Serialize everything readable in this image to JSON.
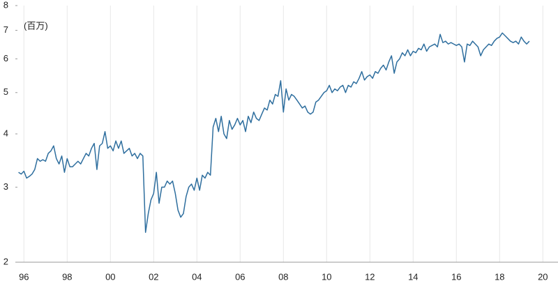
{
  "chart_data": {
    "type": "line",
    "y_label": "(百万)",
    "log_scale": true,
    "grid": true,
    "color": "#2e6e9e",
    "xlim": [
      1995.7,
      2020.7
    ],
    "xticks": [
      {
        "value": 1996,
        "label": "96"
      },
      {
        "value": 1998,
        "label": "98"
      },
      {
        "value": 2000,
        "label": "00"
      },
      {
        "value": 2002,
        "label": "02"
      },
      {
        "value": 2004,
        "label": "04"
      },
      {
        "value": 2006,
        "label": "06"
      },
      {
        "value": 2008,
        "label": "08"
      },
      {
        "value": 2010,
        "label": "10"
      },
      {
        "value": 2012,
        "label": "12"
      },
      {
        "value": 2014,
        "label": "14"
      },
      {
        "value": 2016,
        "label": "16"
      },
      {
        "value": 2018,
        "label": "18"
      },
      {
        "value": 2020,
        "label": "20"
      }
    ],
    "ylim": [
      2,
      8
    ],
    "yticks": [
      2,
      3,
      4,
      5,
      6,
      7,
      8
    ],
    "x": [
      1995.75,
      1995.875,
      1996,
      1996.125,
      1996.25,
      1996.375,
      1996.5,
      1996.625,
      1996.75,
      1996.875,
      1997,
      1997.125,
      1997.25,
      1997.375,
      1997.5,
      1997.625,
      1997.75,
      1997.875,
      1998,
      1998.125,
      1998.25,
      1998.375,
      1998.5,
      1998.625,
      1998.75,
      1998.875,
      1999,
      1999.125,
      1999.25,
      1999.375,
      1999.5,
      1999.625,
      1999.75,
      1999.875,
      2000,
      2000.125,
      2000.25,
      2000.375,
      2000.5,
      2000.625,
      2000.75,
      2000.875,
      2001,
      2001.125,
      2001.25,
      2001.375,
      2001.5,
      2001.625,
      2001.75,
      2001.875,
      2002,
      2002.125,
      2002.25,
      2002.375,
      2002.5,
      2002.625,
      2002.75,
      2002.875,
      2003,
      2003.125,
      2003.25,
      2003.375,
      2003.5,
      2003.625,
      2003.75,
      2003.875,
      2004,
      2004.125,
      2004.25,
      2004.375,
      2004.5,
      2004.625,
      2004.75,
      2004.875,
      2005,
      2005.125,
      2005.25,
      2005.375,
      2005.5,
      2005.625,
      2005.75,
      2005.875,
      2006,
      2006.125,
      2006.25,
      2006.375,
      2006.5,
      2006.625,
      2006.75,
      2006.875,
      2007,
      2007.125,
      2007.25,
      2007.375,
      2007.5,
      2007.625,
      2007.75,
      2007.875,
      2008,
      2008.125,
      2008.25,
      2008.375,
      2008.5,
      2008.625,
      2008.75,
      2008.875,
      2009,
      2009.125,
      2009.25,
      2009.375,
      2009.5,
      2009.625,
      2009.75,
      2009.875,
      2010,
      2010.125,
      2010.25,
      2010.375,
      2010.5,
      2010.625,
      2010.75,
      2010.875,
      2011,
      2011.125,
      2011.25,
      2011.375,
      2011.5,
      2011.625,
      2011.75,
      2011.875,
      2012,
      2012.125,
      2012.25,
      2012.375,
      2012.5,
      2012.625,
      2012.75,
      2012.875,
      2013,
      2013.125,
      2013.25,
      2013.375,
      2013.5,
      2013.625,
      2013.75,
      2013.875,
      2014,
      2014.125,
      2014.25,
      2014.375,
      2014.5,
      2014.625,
      2014.75,
      2014.875,
      2015,
      2015.125,
      2015.25,
      2015.375,
      2015.5,
      2015.625,
      2015.75,
      2015.875,
      2016,
      2016.125,
      2016.25,
      2016.375,
      2016.5,
      2016.625,
      2016.75,
      2016.875,
      2017,
      2017.125,
      2017.25,
      2017.375,
      2017.5,
      2017.625,
      2017.75,
      2017.875,
      2018,
      2018.125,
      2018.25,
      2018.375,
      2018.5,
      2018.625,
      2018.75,
      2018.875,
      2019,
      2019.125,
      2019.25,
      2019.375
    ],
    "values": [
      3.25,
      3.22,
      3.27,
      3.15,
      3.18,
      3.22,
      3.3,
      3.5,
      3.45,
      3.48,
      3.45,
      3.6,
      3.65,
      3.75,
      3.5,
      3.4,
      3.55,
      3.25,
      3.5,
      3.35,
      3.35,
      3.4,
      3.45,
      3.4,
      3.5,
      3.6,
      3.55,
      3.7,
      3.8,
      3.3,
      3.75,
      3.8,
      4.05,
      3.7,
      3.75,
      3.65,
      3.85,
      3.7,
      3.85,
      3.6,
      3.65,
      3.7,
      3.55,
      3.6,
      3.5,
      3.6,
      3.55,
      2.35,
      2.6,
      2.8,
      2.9,
      3.25,
      2.75,
      3.0,
      3.0,
      3.1,
      3.05,
      3.1,
      2.9,
      2.65,
      2.55,
      2.6,
      2.85,
      3.0,
      3.05,
      2.95,
      3.15,
      2.95,
      3.2,
      3.15,
      3.25,
      3.2,
      4.15,
      4.35,
      4.05,
      4.4,
      4.0,
      3.9,
      4.3,
      4.1,
      4.2,
      4.35,
      4.2,
      4.3,
      4.05,
      4.4,
      4.25,
      4.5,
      4.35,
      4.3,
      4.45,
      4.6,
      4.55,
      4.8,
      4.7,
      4.95,
      4.9,
      5.33,
      4.5,
      5.1,
      4.8,
      4.95,
      4.9,
      4.8,
      4.7,
      4.6,
      4.65,
      4.5,
      4.45,
      4.5,
      4.75,
      4.8,
      4.9,
      5.0,
      5.05,
      5.2,
      5.0,
      5.1,
      5.05,
      5.15,
      5.2,
      5.0,
      5.2,
      5.15,
      5.3,
      5.25,
      5.4,
      5.6,
      5.35,
      5.45,
      5.5,
      5.4,
      5.6,
      5.55,
      5.7,
      5.8,
      5.65,
      5.9,
      6.1,
      5.55,
      5.9,
      6.0,
      6.2,
      6.1,
      6.3,
      6.1,
      6.25,
      6.2,
      6.35,
      6.3,
      6.5,
      6.25,
      6.4,
      6.45,
      6.5,
      6.4,
      6.85,
      6.55,
      6.6,
      6.5,
      6.55,
      6.5,
      6.45,
      6.5,
      6.4,
      5.9,
      6.5,
      6.45,
      6.6,
      6.5,
      6.4,
      6.1,
      6.3,
      6.4,
      6.5,
      6.45,
      6.6,
      6.7,
      6.75,
      6.9,
      6.8,
      6.7,
      6.6,
      6.55,
      6.6,
      6.5,
      6.75,
      6.6,
      6.5,
      6.6
    ]
  }
}
